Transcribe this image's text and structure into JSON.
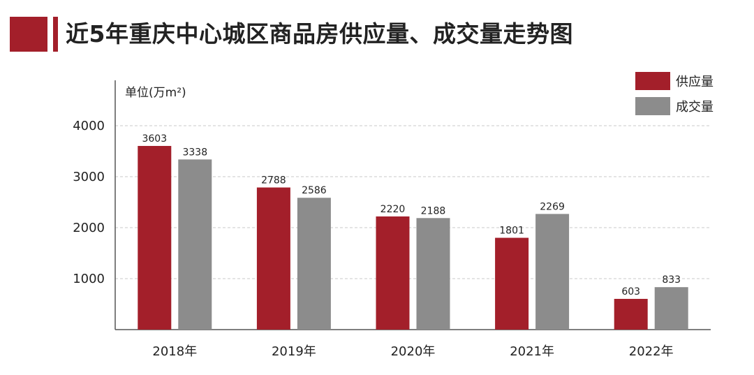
{
  "title": "近5年重庆中心城区商品房供应量、成交量走势图",
  "colors": {
    "brand": "#a31f2a",
    "supply": "#a31f2a",
    "deal": "#8c8c8c",
    "axis": "#555555",
    "grid": "#c8c8c8"
  },
  "chart_data": {
    "type": "bar",
    "unit_label": "单位(万m²)",
    "categories": [
      "2018年",
      "2019年",
      "2020年",
      "2021年",
      "2022年"
    ],
    "series": [
      {
        "name": "供应量",
        "values": [
          3603,
          2788,
          2220,
          1801,
          603
        ]
      },
      {
        "name": "成交量",
        "values": [
          3338,
          2586,
          2188,
          2269,
          833
        ]
      }
    ],
    "yticks": [
      1000,
      2000,
      3000,
      4000
    ],
    "ylim": [
      0,
      4000
    ],
    "grid": true,
    "legend_position": "top-right"
  }
}
